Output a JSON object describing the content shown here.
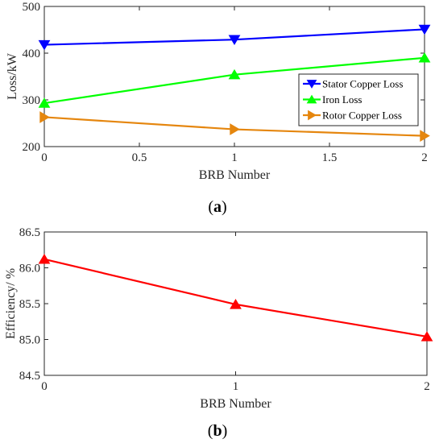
{
  "chart_data": [
    {
      "type": "line",
      "caption_letter": "a",
      "xlabel": "BRB Number",
      "ylabel": "Loss/kW",
      "xlim": [
        0,
        2
      ],
      "ylim": [
        200,
        500
      ],
      "xticks": [
        0,
        0.5,
        1,
        1.5,
        2
      ],
      "yticks": [
        200,
        300,
        400,
        500
      ],
      "grid": false,
      "legend_position": "center-right",
      "series": [
        {
          "name": "Stator Copper Loss",
          "x": [
            0,
            1,
            2
          ],
          "y": [
            418,
            429,
            451
          ],
          "color": "#0000ff",
          "marker": "triangle-down"
        },
        {
          "name": "Iron Loss",
          "x": [
            0,
            1,
            2
          ],
          "y": [
            293,
            354,
            390
          ],
          "color": "#00ff00",
          "marker": "triangle-up"
        },
        {
          "name": "Rotor Copper Loss",
          "x": [
            0,
            1,
            2
          ],
          "y": [
            263,
            237,
            223
          ],
          "color": "#e5860e",
          "marker": "triangle-right"
        }
      ]
    },
    {
      "type": "line",
      "caption_letter": "b",
      "xlabel": "BRB Number",
      "ylabel": "Efficiency/ %",
      "xlim": [
        0,
        2
      ],
      "ylim": [
        84.5,
        86.5
      ],
      "xticks": [
        0,
        1,
        2
      ],
      "yticks": [
        84.5,
        85.0,
        85.5,
        86.0,
        86.5
      ],
      "grid": false,
      "series": [
        {
          "x": [
            0,
            1,
            2
          ],
          "y": [
            86.12,
            85.49,
            85.04
          ],
          "color": "#ff0000",
          "marker": "triangle-up"
        }
      ]
    }
  ]
}
